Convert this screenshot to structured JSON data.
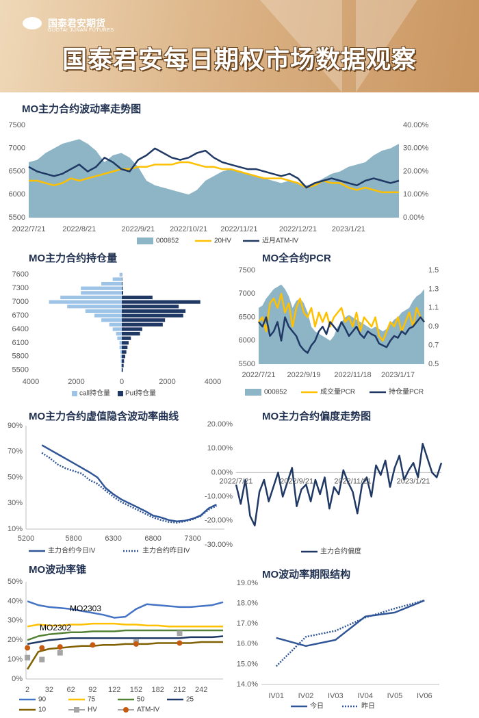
{
  "header": {
    "logo": "国泰君安期货",
    "logo_en": "GUOTAI JUNAN FUTURES",
    "title": "国泰君安每日期权市场数据观察"
  },
  "chart_data": [
    {
      "type": "line",
      "title": "MO主力合约波动率走势图",
      "categories": [
        "2022/7/21",
        null,
        null,
        null,
        null,
        null,
        "2022/8/21",
        null,
        null,
        null,
        null,
        null,
        null,
        "2022/9/21",
        null,
        null,
        null,
        null,
        null,
        "2022/10/21",
        null,
        null,
        null,
        null,
        null,
        "2022/11/21",
        null,
        null,
        null,
        null,
        null,
        null,
        "2022/12/21",
        null,
        null,
        null,
        null,
        null,
        "2023/1/21",
        null,
        null,
        null,
        null,
        null,
        null
      ],
      "series": [
        {
          "name": "000852",
          "kind": "area",
          "color": "#8db5c6",
          "values": [
            6700,
            6750,
            6900,
            7000,
            7100,
            7150,
            7200,
            7100,
            6950,
            6700,
            6850,
            6900,
            6800,
            6600,
            6300,
            6200,
            6150,
            6100,
            6050,
            6000,
            6100,
            6300,
            6400,
            6500,
            6550,
            6500,
            6450,
            6400,
            6350,
            6300,
            6250,
            6300,
            6250,
            6200,
            6250,
            6350,
            6450,
            6500,
            6600,
            6650,
            6700,
            6850,
            6950,
            7000,
            7100
          ]
        },
        {
          "name": "20HV",
          "color": "#ffc000",
          "axis": "y2",
          "values": [
            16,
            16,
            15,
            14,
            15,
            17,
            16,
            17,
            18,
            19,
            20,
            21,
            21,
            22,
            22,
            23,
            23,
            23,
            24,
            24,
            23,
            22,
            22,
            21,
            21,
            20,
            19,
            18,
            17,
            17,
            17,
            16,
            15,
            13,
            14,
            16,
            15,
            15,
            13,
            12,
            13,
            12,
            11,
            11,
            11
          ]
        },
        {
          "name": "近月ATM-IV",
          "color": "#1f3864",
          "axis": "y2",
          "values": [
            22,
            20,
            19,
            18,
            19,
            21,
            23,
            20,
            22,
            26,
            24,
            21,
            20,
            25,
            27,
            30,
            28,
            26,
            25,
            26,
            28,
            29,
            26,
            24,
            23,
            22,
            21,
            21,
            20,
            19,
            18,
            19,
            17,
            13,
            15,
            16,
            17,
            16,
            15,
            14,
            16,
            17,
            16,
            15,
            16
          ]
        }
      ],
      "ylim": [
        5500,
        7500
      ],
      "yticks": [
        5500,
        6000,
        6500,
        7000,
        7500
      ],
      "y2lim": [
        0,
        40
      ],
      "y2ticks": [
        {
          "value": 0,
          "label": "0.00%"
        },
        {
          "value": 10,
          "label": "10.00%"
        },
        {
          "value": 20,
          "label": "20.00%"
        },
        {
          "value": 30,
          "label": "30.00%"
        },
        {
          "value": 40,
          "label": "40.00%"
        }
      ]
    },
    {
      "type": "bar",
      "orientation": "horizontal",
      "title": "MO主力合约持仓量",
      "categories": [
        "7600",
        null,
        null,
        "7300",
        null,
        null,
        "7000",
        null,
        null,
        "6700",
        null,
        null,
        "6400",
        null,
        null,
        "6100",
        null,
        null,
        "5800",
        null,
        null,
        "5500"
      ],
      "series": [
        {
          "name": "call持仓量",
          "color": "#9dc3e6",
          "mirror": true,
          "values": [
            100,
            400,
            900,
            1800,
            1800,
            2700,
            3200,
            2400,
            1600,
            1200,
            900,
            550,
            400,
            250,
            200,
            100,
            100,
            60,
            50,
            40,
            30,
            20
          ]
        },
        {
          "name": "Put持仓量",
          "color": "#203864",
          "values": [
            10,
            20,
            30,
            40,
            60,
            1350,
            3450,
            2500,
            2800,
            2700,
            1900,
            1800,
            900,
            800,
            400,
            300,
            250,
            200,
            150,
            100,
            80,
            50
          ]
        }
      ],
      "xlim": [
        -4000,
        4000
      ],
      "xticks": [
        {
          "value": -4000,
          "label": "4000"
        },
        {
          "value": -2000,
          "label": "2000"
        },
        0,
        2000,
        4000
      ]
    },
    {
      "type": "line",
      "title": "MO全合约PCR",
      "categories": [
        "2022/7/21",
        null,
        null,
        null,
        null,
        null,
        null,
        null,
        null,
        null,
        null,
        null,
        "2022/9/19",
        null,
        null,
        null,
        null,
        null,
        null,
        null,
        null,
        null,
        null,
        null,
        null,
        "2022/11/18",
        null,
        null,
        null,
        null,
        null,
        null,
        null,
        null,
        null,
        null,
        null,
        "2023/1/17",
        null,
        null,
        null,
        null,
        null,
        null,
        null
      ],
      "series": [
        {
          "name": "000852",
          "kind": "area",
          "color": "#8db5c6",
          "values": [
            6700,
            6750,
            6900,
            7000,
            7100,
            7150,
            7200,
            7100,
            6950,
            6700,
            6850,
            6900,
            6800,
            6600,
            6300,
            6200,
            6150,
            6100,
            6050,
            6000,
            6100,
            6300,
            6400,
            6500,
            6550,
            6500,
            6450,
            6400,
            6350,
            6300,
            6250,
            6300,
            6250,
            6200,
            6250,
            6350,
            6450,
            6500,
            6600,
            6650,
            6700,
            6850,
            6950,
            7000,
            7100
          ]
        },
        {
          "name": "成交量PCR",
          "color": "#ffc000",
          "axis": "y2",
          "values": [
            0.95,
            1.0,
            0.85,
            1.15,
            1.2,
            1.1,
            1.25,
            1.05,
            1.15,
            0.9,
            1.1,
            1.2,
            1.05,
            1.0,
            1.1,
            0.9,
            1.05,
            0.95,
            1.05,
            0.9,
            1.0,
            1.05,
            1.1,
            0.95,
            1.0,
            0.9,
            1.05,
            0.85,
            1.0,
            0.95,
            0.9,
            1.0,
            0.8,
            0.75,
            0.85,
            0.95,
            0.9,
            1.0,
            0.85,
            0.95,
            1.05,
            0.9,
            1.1,
            1.0,
            0.95
          ]
        },
        {
          "name": "持仓量PCR",
          "color": "#1f3864",
          "axis": "y2",
          "values": [
            0.95,
            0.9,
            1.0,
            0.8,
            0.85,
            0.95,
            0.75,
            1.0,
            0.9,
            0.85,
            0.8,
            0.7,
            0.65,
            0.62,
            0.7,
            0.75,
            0.85,
            0.9,
            0.82,
            0.95,
            0.9,
            0.85,
            0.95,
            0.88,
            0.8,
            0.85,
            0.9,
            0.82,
            0.78,
            0.85,
            0.82,
            0.8,
            0.72,
            0.7,
            0.68,
            0.75,
            0.8,
            0.78,
            0.85,
            0.82,
            0.88,
            0.9,
            0.95,
            1.0,
            0.95
          ]
        }
      ],
      "ylim": [
        5500,
        7500
      ],
      "yticks": [
        5500,
        6000,
        6500,
        7000,
        7500
      ],
      "y2lim": [
        0.5,
        1.5
      ],
      "y2ticks": [
        0.5,
        0.7,
        0.9,
        1.1,
        1.3,
        1.5
      ]
    },
    {
      "type": "line",
      "title": "MO主力合约虚值隐含波动率曲线",
      "x": [
        5400,
        5500,
        5600,
        5700,
        5800,
        5900,
        6000,
        6100,
        6200,
        6300,
        6400,
        6500,
        6600,
        6700,
        6800,
        6900,
        7000,
        7100,
        7200,
        7300,
        7400,
        7500,
        7600
      ],
      "series": [
        {
          "name": "主力合约今日IV",
          "color": "#2f5597",
          "values": [
            75,
            71.5,
            68,
            64.5,
            61,
            57.5,
            54,
            50,
            42,
            37,
            33,
            30,
            27,
            24,
            20.5,
            19,
            17,
            16,
            16.5,
            18,
            20.5,
            26,
            29
          ]
        },
        {
          "name": "主力合约昨日IV",
          "color": "#2f5597",
          "dash": "dotted",
          "values": [
            69,
            65,
            60,
            57,
            55,
            53,
            48,
            45,
            40,
            35,
            31,
            28,
            25,
            22,
            19,
            17,
            15.5,
            15,
            16,
            17.5,
            20,
            25,
            28
          ]
        }
      ],
      "xlim": [
        5200,
        7700
      ],
      "xticks": [
        5200,
        5800,
        6300,
        6800,
        7300
      ],
      "ylim": [
        10,
        90
      ],
      "yticks": [
        {
          "value": 10,
          "label": "10%"
        },
        {
          "value": 30,
          "label": "30%"
        },
        {
          "value": 50,
          "label": "50%"
        },
        {
          "value": 70,
          "label": "70%"
        },
        {
          "value": 90,
          "label": "90%"
        }
      ]
    },
    {
      "type": "line",
      "title": "MO主力合约偏度走势图",
      "categories": [
        "2022/7/21",
        null,
        null,
        null,
        null,
        null,
        null,
        null,
        null,
        null,
        null,
        null,
        null,
        "2022/9/21",
        null,
        null,
        null,
        null,
        null,
        null,
        null,
        null,
        null,
        null,
        null,
        "2022/11/21",
        null,
        null,
        null,
        null,
        null,
        null,
        null,
        null,
        null,
        null,
        null,
        null,
        "2023/1/21",
        null,
        null,
        null,
        null,
        null,
        null
      ],
      "series": [
        {
          "name": "主力合约偏度",
          "color": "#1f3864",
          "values": [
            -5,
            -13,
            -3,
            -18,
            -22,
            -8,
            -3,
            -12,
            -6,
            0,
            -10,
            -4,
            2,
            -14,
            -7,
            -5,
            -12,
            -3,
            -9,
            -2,
            -15,
            -6,
            -9,
            1,
            -4,
            -8,
            -17,
            -5,
            -2,
            -10,
            3,
            -1,
            5,
            -6,
            2,
            7,
            -3,
            1,
            4,
            -2,
            12,
            6,
            0,
            -2,
            4
          ]
        }
      ],
      "ylim": [
        -30,
        20
      ],
      "yticks": [
        {
          "value": -30,
          "label": "-30.00%"
        },
        {
          "value": -20,
          "label": "-20.00%"
        },
        {
          "value": -10,
          "label": "-10.00%"
        },
        {
          "value": 0,
          "label": "0.00%"
        },
        {
          "value": 10,
          "label": "10.00%"
        },
        {
          "value": 20,
          "label": "20.00%"
        }
      ]
    },
    {
      "type": "line",
      "title": "MO波动率锥",
      "x": [
        2,
        17,
        32,
        47,
        62,
        77,
        92,
        107,
        122,
        137,
        152,
        167,
        182,
        197,
        212,
        227,
        242,
        257,
        272
      ],
      "series": [
        {
          "name": "90",
          "color": "#4472c4",
          "values": [
            40,
            38,
            37,
            36.5,
            36,
            35,
            34,
            33,
            31.5,
            32,
            36,
            38.5,
            38,
            37.5,
            37,
            37,
            37.5,
            38,
            39.5
          ]
        },
        {
          "name": "75",
          "color": "#ffc000",
          "values": [
            27,
            28,
            27.5,
            27.5,
            28,
            28,
            28.5,
            28.5,
            28.5,
            28,
            28,
            27.5,
            27.5,
            27,
            27,
            27,
            27,
            27,
            27
          ]
        },
        {
          "name": "50",
          "color": "#548235",
          "values": [
            20,
            22,
            23,
            23.5,
            24,
            24,
            24.5,
            24.5,
            24.5,
            25,
            25,
            25,
            25,
            25,
            25,
            25,
            25,
            25,
            25
          ]
        },
        {
          "name": "25",
          "color": "#1f3864",
          "values": [
            18,
            19,
            20,
            20.5,
            21,
            21,
            21,
            21,
            21,
            21,
            21,
            21,
            21,
            21,
            21,
            21.5,
            21.5,
            21.5,
            22
          ]
        },
        {
          "name": "10",
          "color": "#806000",
          "values": [
            5,
            14,
            15.5,
            16,
            16.5,
            17,
            17,
            17.5,
            17.5,
            18,
            18,
            18,
            18.5,
            18.5,
            18.5,
            18.5,
            19,
            19,
            19
          ]
        },
        {
          "name": "HV",
          "color": "#a5a5a5",
          "kind": "scatter",
          "marker": "square",
          "x": [
            2,
            22,
            47,
            152,
            212
          ],
          "values": [
            11,
            10,
            13.5,
            19,
            23.5
          ]
        },
        {
          "name": "ATM-IV",
          "color": "#c55a11",
          "kind": "scatter",
          "marker": "circle",
          "x": [
            2,
            22,
            47,
            92,
            152,
            212
          ],
          "values": [
            16,
            16,
            16.5,
            17.5,
            18,
            18.5
          ]
        }
      ],
      "annotations": [
        "MO2303",
        "MO2302"
      ],
      "xlim": [
        0,
        272
      ],
      "xticks": [
        2,
        32,
        62,
        92,
        122,
        152,
        182,
        212,
        242
      ],
      "ylim": [
        0,
        50
      ],
      "yticks": [
        {
          "value": 0,
          "label": "0%"
        },
        {
          "value": 10,
          "label": "10%"
        },
        {
          "value": 20,
          "label": "20%"
        },
        {
          "value": 30,
          "label": "30%"
        },
        {
          "value": 40,
          "label": "40%"
        },
        {
          "value": 50,
          "label": "50%"
        }
      ]
    },
    {
      "type": "line",
      "title": "MO波动率期限结构",
      "categories": [
        "IV01",
        "IV02",
        "IV03",
        "IV04",
        "IV05",
        "IV06"
      ],
      "series": [
        {
          "name": "今日",
          "color": "#2f5597",
          "values": [
            16.3,
            15.9,
            16.2,
            17.35,
            17.55,
            18.15
          ]
        },
        {
          "name": "昨日",
          "color": "#2f5597",
          "dash": "dotted",
          "values": [
            14.9,
            16.35,
            16.65,
            17.3,
            17.75,
            18.15
          ]
        }
      ],
      "ylim": [
        14,
        19
      ],
      "yticks": [
        {
          "value": 14,
          "label": "14.0%"
        },
        {
          "value": 15,
          "label": "15.0%"
        },
        {
          "value": 16,
          "label": "16.0%"
        },
        {
          "value": 17,
          "label": "17.0%"
        },
        {
          "value": 18,
          "label": "18.0%"
        },
        {
          "value": 19,
          "label": "19.0%"
        }
      ]
    }
  ]
}
